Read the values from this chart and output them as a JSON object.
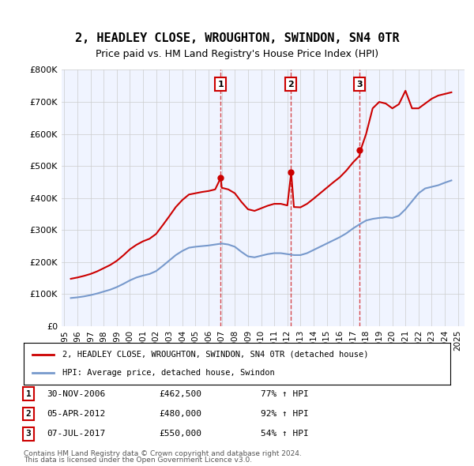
{
  "title": "2, HEADLEY CLOSE, WROUGHTON, SWINDON, SN4 0TR",
  "subtitle": "Price paid vs. HM Land Registry's House Price Index (HPI)",
  "ylabel": "",
  "ylim": [
    0,
    800000
  ],
  "yticks": [
    0,
    100000,
    200000,
    300000,
    400000,
    500000,
    600000,
    700000,
    800000
  ],
  "ytick_labels": [
    "£0",
    "£100K",
    "£200K",
    "£300K",
    "£400K",
    "£500K",
    "£600K",
    "£700K",
    "£800K"
  ],
  "sale_dates": [
    "2006-11-30",
    "2012-04-05",
    "2017-07-07"
  ],
  "sale_prices": [
    462500,
    480000,
    550000
  ],
  "sale_labels": [
    "1",
    "2",
    "3"
  ],
  "sale_info": [
    [
      "1",
      "30-NOV-2006",
      "£462,500",
      "77% ↑ HPI"
    ],
    [
      "2",
      "05-APR-2012",
      "£480,000",
      "92% ↑ HPI"
    ],
    [
      "3",
      "07-JUL-2017",
      "£550,000",
      "54% ↑ HPI"
    ]
  ],
  "legend_line1": "2, HEADLEY CLOSE, WROUGHTON, SWINDON, SN4 0TR (detached house)",
  "legend_line2": "HPI: Average price, detached house, Swindon",
  "footer1": "Contains HM Land Registry data © Crown copyright and database right 2024.",
  "footer2": "This data is licensed under the Open Government Licence v3.0.",
  "line_color_property": "#cc0000",
  "line_color_hpi": "#7799cc",
  "bg_color": "#f0f4ff",
  "grid_color": "#cccccc",
  "hpi_data_x": [
    1995.5,
    1996.0,
    1996.5,
    1997.0,
    1997.5,
    1998.0,
    1998.5,
    1999.0,
    1999.5,
    2000.0,
    2000.5,
    2001.0,
    2001.5,
    2002.0,
    2002.5,
    2003.0,
    2003.5,
    2004.0,
    2004.5,
    2005.0,
    2005.5,
    2006.0,
    2006.5,
    2007.0,
    2007.5,
    2008.0,
    2008.5,
    2009.0,
    2009.5,
    2010.0,
    2010.5,
    2011.0,
    2011.5,
    2012.0,
    2012.5,
    2013.0,
    2013.5,
    2014.0,
    2014.5,
    2015.0,
    2015.5,
    2016.0,
    2016.5,
    2017.0,
    2017.5,
    2018.0,
    2018.5,
    2019.0,
    2019.5,
    2020.0,
    2020.5,
    2021.0,
    2021.5,
    2022.0,
    2022.5,
    2023.0,
    2023.5,
    2024.0,
    2024.5
  ],
  "hpi_data_y": [
    88000,
    90000,
    93000,
    97000,
    102000,
    108000,
    114000,
    122000,
    132000,
    143000,
    152000,
    158000,
    163000,
    172000,
    188000,
    205000,
    222000,
    235000,
    245000,
    248000,
    250000,
    252000,
    255000,
    258000,
    255000,
    248000,
    232000,
    218000,
    215000,
    220000,
    225000,
    228000,
    228000,
    225000,
    222000,
    222000,
    228000,
    238000,
    248000,
    258000,
    268000,
    278000,
    290000,
    305000,
    318000,
    330000,
    335000,
    338000,
    340000,
    338000,
    345000,
    365000,
    390000,
    415000,
    430000,
    435000,
    440000,
    448000,
    455000
  ],
  "property_data_x": [
    1995.5,
    1996.0,
    1996.5,
    1997.0,
    1997.5,
    1998.0,
    1998.5,
    1999.0,
    1999.5,
    2000.0,
    2000.5,
    2001.0,
    2001.5,
    2002.0,
    2002.5,
    2003.0,
    2003.5,
    2004.0,
    2004.5,
    2005.0,
    2005.5,
    2006.0,
    2006.5,
    2006.917,
    2007.0,
    2007.5,
    2008.0,
    2008.5,
    2009.0,
    2009.5,
    2010.0,
    2010.5,
    2011.0,
    2011.5,
    2012.0,
    2012.292,
    2012.5,
    2013.0,
    2013.5,
    2014.0,
    2014.5,
    2015.0,
    2015.5,
    2016.0,
    2016.5,
    2017.0,
    2017.5,
    2017.583,
    2018.0,
    2018.5,
    2019.0,
    2019.5,
    2020.0,
    2020.5,
    2021.0,
    2021.5,
    2022.0,
    2022.5,
    2023.0,
    2023.5,
    2024.0,
    2024.5
  ],
  "property_data_y": [
    148000,
    152000,
    157000,
    163000,
    171000,
    181000,
    191000,
    204000,
    221000,
    240000,
    254000,
    265000,
    273000,
    288000,
    315000,
    343000,
    372000,
    394000,
    411000,
    415000,
    419000,
    422000,
    427000,
    462500,
    432000,
    427000,
    415000,
    388000,
    365000,
    360000,
    368000,
    376000,
    382000,
    382000,
    377000,
    480000,
    372000,
    371000,
    382000,
    398000,
    415000,
    432000,
    449000,
    465000,
    486000,
    511000,
    532000,
    550000,
    600000,
    680000,
    700000,
    695000,
    680000,
    693000,
    735000,
    680000,
    680000,
    695000,
    710000,
    720000,
    725000,
    730000
  ],
  "xlim_left": 1994.8,
  "xlim_right": 2025.5,
  "xticks": [
    1995,
    1996,
    1997,
    1998,
    1999,
    2000,
    2001,
    2002,
    2003,
    2004,
    2005,
    2006,
    2007,
    2008,
    2009,
    2010,
    2011,
    2012,
    2013,
    2014,
    2015,
    2016,
    2017,
    2018,
    2019,
    2020,
    2021,
    2022,
    2023,
    2024,
    2025
  ]
}
